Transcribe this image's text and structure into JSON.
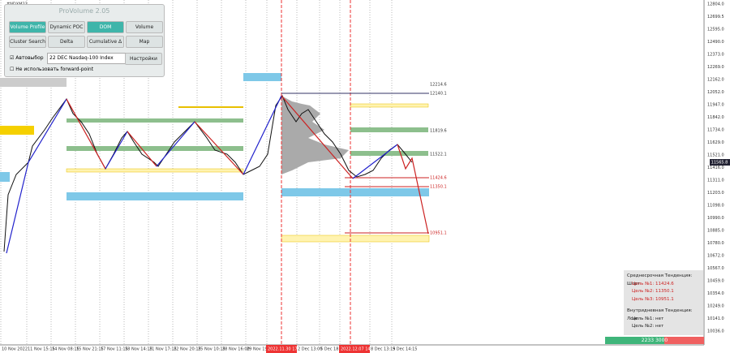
{
  "header": {
    "symbol": "#NDXM23"
  },
  "panel": {
    "title": "ProVolume 2.05",
    "buttons": [
      "Volume Profile",
      "Dynamic POC",
      "DOM",
      "Volume",
      "Cluster Search",
      "Delta",
      "Cumulative Δ",
      "Map"
    ],
    "auto_label": "Автовыбор",
    "instrument": "22 DEC Nasdaq-100 Index",
    "settings": "Настройки",
    "forward_label": "Не использовать forward-point"
  },
  "price_axis": [
    "12804.0",
    "12699.5",
    "12595.0",
    "12490.0",
    "12373.0",
    "12269.0",
    "12162.0",
    "12052.0",
    "11947.0",
    "11842.0",
    "11734.0",
    "11629.0",
    "11521.0",
    "11416.0",
    "11311.0",
    "11203.0",
    "11098.0",
    "10990.0",
    "10885.0",
    "10780.0",
    "10672.0",
    "10567.0",
    "10459.0",
    "10354.0",
    "10249.0",
    "10141.0",
    "10036.0"
  ],
  "current_price": "11565.8",
  "levels": [
    "12214.6",
    "12140.1",
    "11819.6",
    "11522.1",
    "11424.6",
    "11350.1",
    "10951.1"
  ],
  "time_axis": [
    "10 Nov 2022",
    "11 Nov 15:15",
    "14 Nov 08:15",
    "15 Nov 21:15",
    "17 Nov 11:15",
    "18 Nov 14:15",
    "21 Nov 17:15",
    "22 Nov 20:15",
    "25 Nov 10:15",
    "28 Nov 16:00",
    "29 Nov 19:00",
    "2022.11.30 17:00",
    "2 Dec 13:00",
    "5 Dec 18:00",
    "2022.12.07 14:30",
    "8 Dec 13:15",
    "9 Dec 14:15"
  ],
  "info": {
    "lines": [
      "Среднесрочная Тенденция: Шорт",
      "Цель №1: 11424.6",
      "Цель №2: 11350.1",
      "Цель №3: 10951.1",
      "Внутридневная Тенденция: Лонг",
      "Цель №1: нет",
      "Цель №2: нет"
    ],
    "footer": "2233 3000"
  }
}
